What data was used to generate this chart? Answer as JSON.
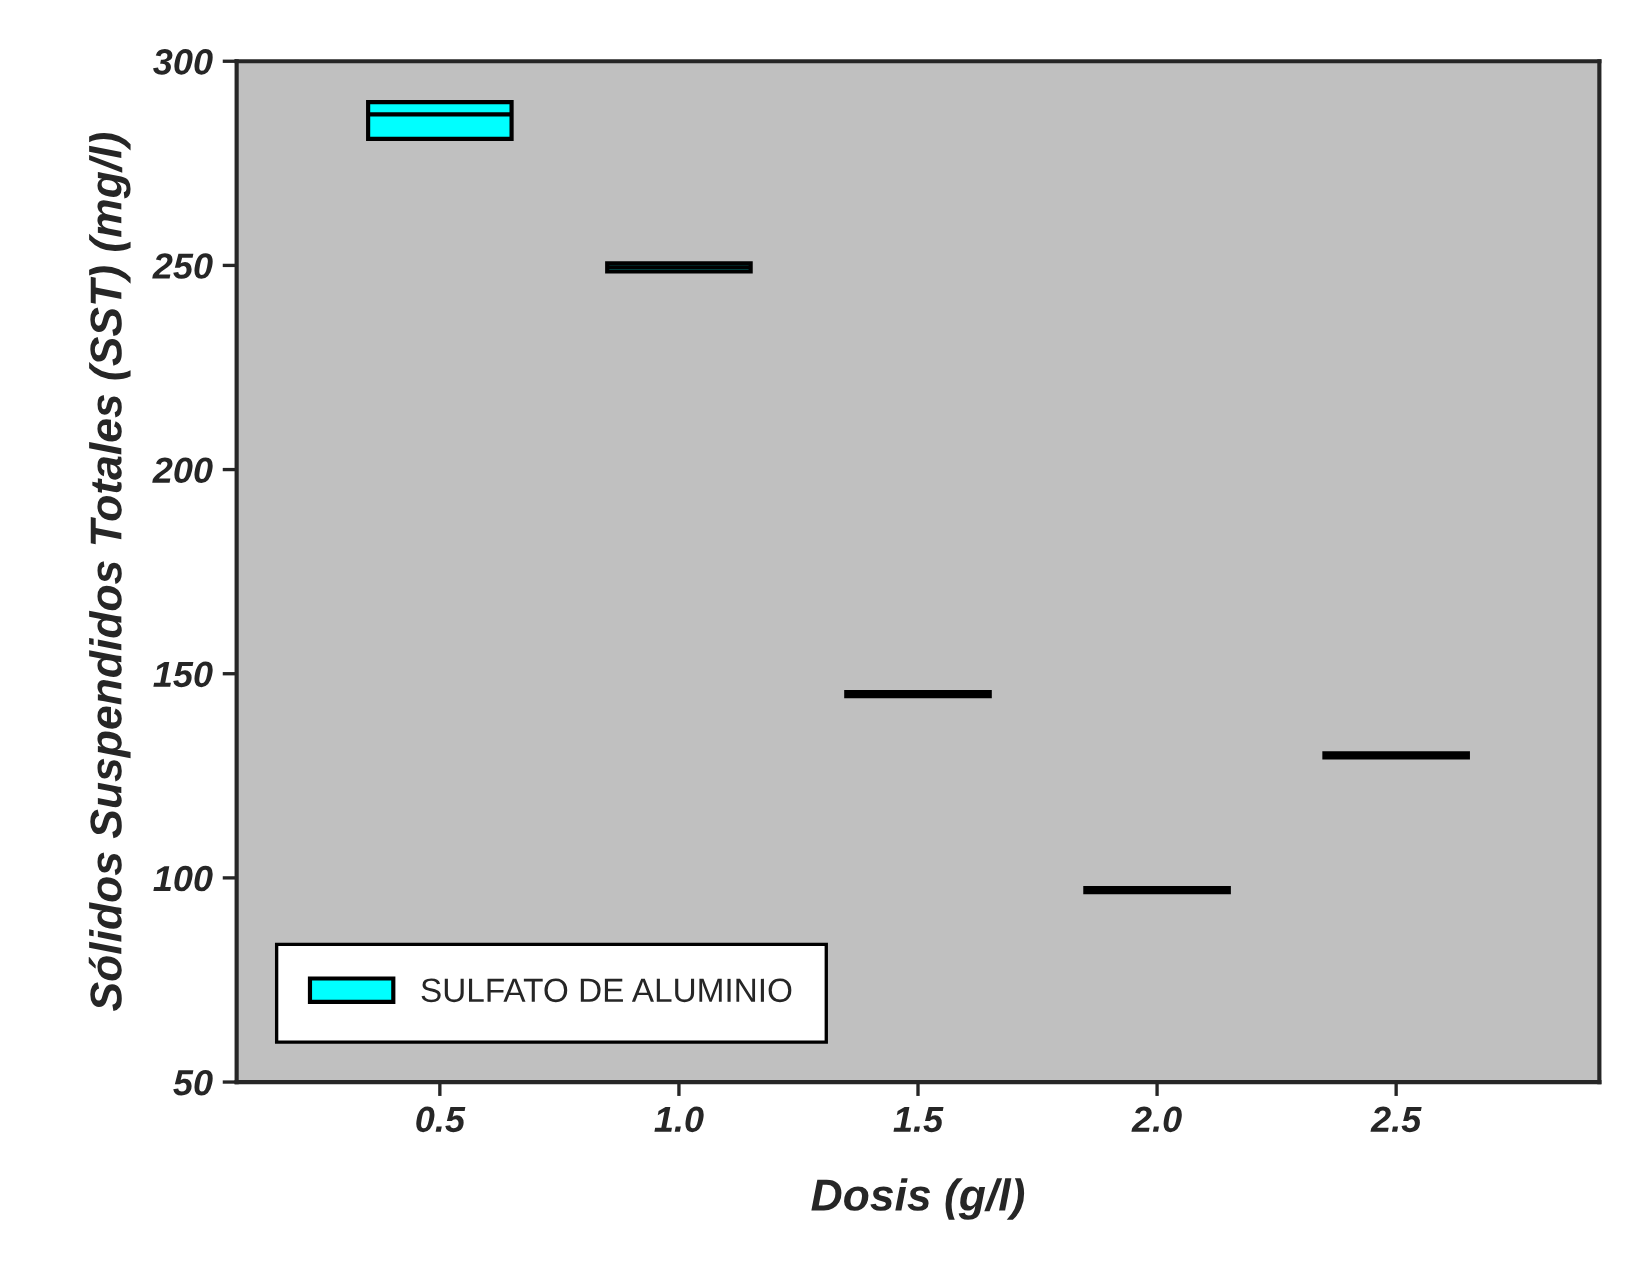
{
  "chart_data": {
    "type": "box",
    "xlabel": "Dosis (g/l)",
    "ylabel": "Sólidos Suspendidos Totales (SST) (mg/l)",
    "categories": [
      "0.5",
      "1.0",
      "1.5",
      "2.0",
      "2.5"
    ],
    "series": [
      {
        "name": "SULFATO DE ALUMINIO",
        "color": "#00ffff",
        "boxes": [
          {
            "low": 281,
            "q1": 281,
            "median": 287,
            "q3": 290,
            "high": 290
          },
          {
            "low": 248.5,
            "q1": 248.5,
            "median": 249.5,
            "q3": 250.5,
            "high": 250.5
          },
          {
            "low": 144.5,
            "q1": 144.5,
            "median": 145,
            "q3": 145.5,
            "high": 145.5
          },
          {
            "low": 96.5,
            "q1": 96.5,
            "median": 97,
            "q3": 97.5,
            "high": 97.5
          },
          {
            "low": 129.5,
            "q1": 129.5,
            "median": 130,
            "q3": 130.5,
            "high": 130.5
          }
        ]
      }
    ],
    "ylim": [
      50,
      300
    ],
    "yticks": [
      50,
      100,
      150,
      200,
      250,
      300
    ],
    "legend": "bottom left",
    "grid": false
  }
}
